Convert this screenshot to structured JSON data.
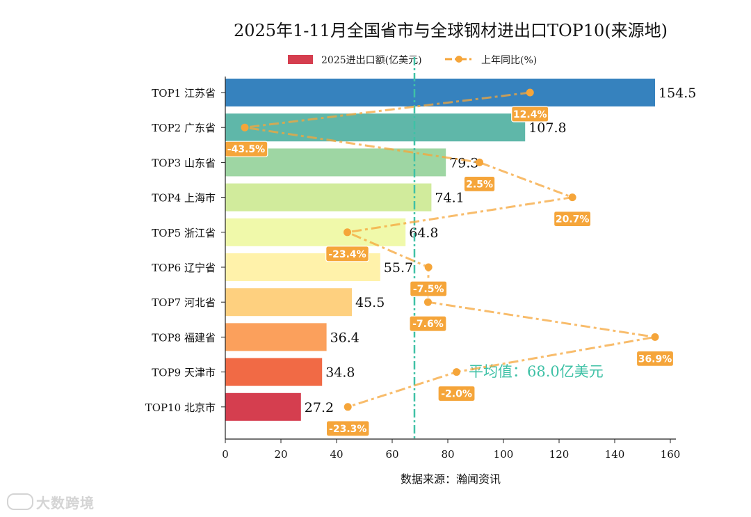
{
  "chart_data": {
    "type": "bar",
    "orientation": "horizontal",
    "title": "2025年1-11月全国省市与全球钢材进出口TOP10(来源地)",
    "xlabel": "数据来源：瀚闻资讯",
    "ylabel": "",
    "xlim": [
      0,
      160
    ],
    "xticks": [
      0,
      20,
      40,
      60,
      80,
      100,
      120,
      140,
      160
    ],
    "categories": [
      "TOP1 江苏省",
      "TOP2 广东省",
      "TOP3 山东省",
      "TOP4 上海市",
      "TOP5 浙江省",
      "TOP6 辽宁省",
      "TOP7 河北省",
      "TOP8 福建省",
      "TOP9 天津市",
      "TOP10 北京市"
    ],
    "series": [
      {
        "name": "2025进出口额(亿美元)",
        "type": "bar",
        "values": [
          154.5,
          107.8,
          79.3,
          74.1,
          64.8,
          55.7,
          45.5,
          36.4,
          34.8,
          27.2
        ],
        "value_labels": [
          "154.5",
          "107.8",
          "79.3",
          "74.1",
          "64.8",
          "55.7",
          "45.5",
          "36.4",
          "34.8",
          "27.2"
        ],
        "colors": [
          "#3682be",
          "#5fb7a9",
          "#9ed6a3",
          "#d1eb9c",
          "#f0f9aa",
          "#fff2aa",
          "#fed07f",
          "#fba05c",
          "#f16a45",
          "#d53e4f"
        ]
      },
      {
        "name": "上年同比(%)",
        "type": "line",
        "values": [
          12.4,
          -43.5,
          2.5,
          20.7,
          -23.4,
          -7.5,
          -7.6,
          36.9,
          -2.0,
          -23.3
        ],
        "value_labels": [
          "12.4%",
          "-43.5%",
          "2.5%",
          "20.7%",
          "-23.4%",
          "-7.5%",
          "-7.6%",
          "36.9%",
          "-2.0%",
          "-23.3%"
        ],
        "color": "#f5a53a"
      }
    ],
    "average": {
      "value": 68.0,
      "label": "平均值：68.0亿美元",
      "color": "#3fc1a6"
    },
    "legend": {
      "position": "top-center",
      "bar_label": "2025进出口额(亿美元)",
      "line_label": "上年同比(%)",
      "bar_color": "#d53e4f",
      "line_color": "#f5a53a"
    }
  },
  "watermark": "大数跨境"
}
